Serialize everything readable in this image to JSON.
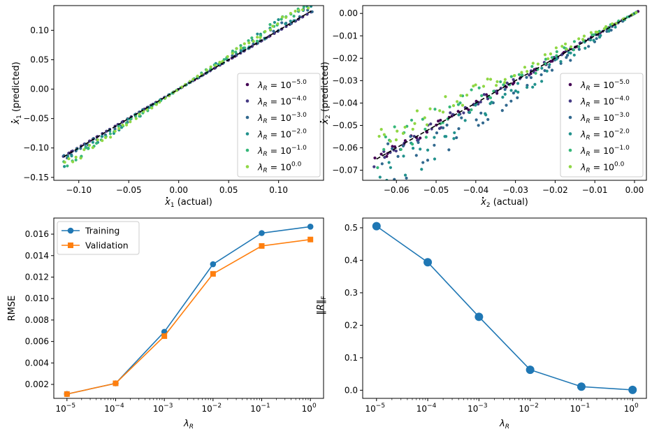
{
  "chart_data": [
    {
      "type": "scatter",
      "xlabel": {
        "var": "x",
        "sub": "1",
        "suffix": " (actual)"
      },
      "ylabel": {
        "var": "x",
        "sub": "1",
        "suffix": " (predicted)"
      },
      "xlim": [
        -0.125,
        0.145
      ],
      "ylim": [
        -0.155,
        0.142
      ],
      "xticks": [
        -0.1,
        -0.05,
        0.0,
        0.05,
        0.1
      ],
      "xtick_labels": [
        "−0.10",
        "−0.05",
        "0.00",
        "0.05",
        "0.10"
      ],
      "yticks": [
        -0.15,
        -0.1,
        -0.05,
        0.0,
        0.05,
        0.1
      ],
      "ytick_labels": [
        "−0.15",
        "−0.10",
        "−0.05",
        "0.00",
        "0.05",
        "0.10"
      ],
      "x_range": [
        -0.115,
        0.133
      ],
      "reference_line": "dashed y = x",
      "legend_position": "lower-right",
      "series": [
        {
          "name": "λR = 10^-5.0",
          "exp": "−5.0",
          "slope": 0.99,
          "spread": 0.0,
          "color": "#440154"
        },
        {
          "name": "λR = 10^-4.0",
          "exp": "−4.0",
          "slope": 0.99,
          "spread": 0.0,
          "color": "#443983"
        },
        {
          "name": "λR = 10^-3.0",
          "exp": "−3.0",
          "slope": 1.03,
          "spread": 0.004,
          "color": "#31688e"
        },
        {
          "name": "λR = 10^-2.0",
          "exp": "−2.0",
          "slope": 1.09,
          "spread": 0.006,
          "color": "#21918c"
        },
        {
          "name": "λR = 10^-1.0",
          "exp": "−1.0",
          "slope": 1.12,
          "spread": 0.005,
          "color": "#35b779"
        },
        {
          "name": "λR = 10^0.0",
          "exp": "0.0",
          "slope": 1.13,
          "spread": 0.004,
          "color": "#8fd744"
        }
      ]
    },
    {
      "type": "scatter",
      "xlabel": {
        "var": "x",
        "sub": "2",
        "suffix": " (actual)"
      },
      "ylabel": {
        "var": "x",
        "sub": "2",
        "suffix": " (predicted)"
      },
      "xlim": [
        -0.0685,
        0.003
      ],
      "ylim": [
        -0.0745,
        0.0035
      ],
      "xticks": [
        -0.06,
        -0.05,
        -0.04,
        -0.03,
        -0.02,
        -0.01,
        0.0
      ],
      "xtick_labels": [
        "−0.06",
        "−0.05",
        "−0.04",
        "−0.03",
        "−0.02",
        "−0.01",
        "0.00"
      ],
      "yticks": [
        -0.07,
        -0.06,
        -0.05,
        -0.04,
        -0.03,
        -0.02,
        -0.01,
        0.0
      ],
      "ytick_labels": [
        "−0.07",
        "−0.06",
        "−0.05",
        "−0.04",
        "−0.03",
        "−0.02",
        "−0.01",
        "0.00"
      ],
      "x_range": [
        -0.065,
        0.0
      ],
      "reference_line": "dashed y = x",
      "legend_position": "lower-right",
      "series": [
        {
          "name": "λR = 10^-5.0",
          "exp": "−5.0",
          "slope": 1.0,
          "spread": 0.001,
          "color": "#440154"
        },
        {
          "name": "λR = 10^-4.0",
          "exp": "−4.0",
          "slope": 1.0,
          "spread": 0.0015,
          "color": "#443983"
        },
        {
          "name": "λR = 10^-3.0",
          "exp": "−3.0",
          "slope": 1.12,
          "spread": 0.006,
          "color": "#31688e"
        },
        {
          "name": "λR = 10^-2.0",
          "exp": "−2.0",
          "slope": 1.15,
          "spread": 0.005,
          "color": "#21918c"
        },
        {
          "name": "λR = 10^-1.0",
          "exp": "−1.0",
          "slope": 0.95,
          "spread": 0.004,
          "color": "#35b779"
        },
        {
          "name": "λR = 10^0.0",
          "exp": "0.0",
          "slope": 0.87,
          "spread": 0.003,
          "color": "#8fd744"
        }
      ]
    },
    {
      "type": "line",
      "x": [
        1e-05,
        0.0001,
        0.001,
        0.01,
        0.1,
        1
      ],
      "xscale": "log",
      "xtick_exponents": [
        "−5",
        "−4",
        "−3",
        "−2",
        "−1",
        "0"
      ],
      "xlabel": "λR",
      "ylabel": "RMSE",
      "ylim": [
        0.0007,
        0.0175
      ],
      "yticks": [
        0.002,
        0.004,
        0.006,
        0.008,
        0.01,
        0.012,
        0.014,
        0.016
      ],
      "ytick_labels": [
        "0.002",
        "0.004",
        "0.006",
        "0.008",
        "0.010",
        "0.012",
        "0.014",
        "0.016"
      ],
      "legend_position": "top-left",
      "series": [
        {
          "name": "Training",
          "values": [
            0.0011,
            0.0021,
            0.0069,
            0.0132,
            0.0161,
            0.0167
          ],
          "color": "#1f77b4",
          "marker": "circle"
        },
        {
          "name": "Validation",
          "values": [
            0.0011,
            0.0021,
            0.0065,
            0.0123,
            0.0149,
            0.0155
          ],
          "color": "#ff7f0e",
          "marker": "square"
        }
      ]
    },
    {
      "type": "line",
      "x": [
        1e-05,
        0.0001,
        0.001,
        0.01,
        0.1,
        1
      ],
      "xscale": "log",
      "xtick_exponents": [
        "−5",
        "−4",
        "−3",
        "−2",
        "−1",
        "0"
      ],
      "xlabel": "λR",
      "ylabel": "‖R‖F",
      "ylim": [
        -0.025,
        0.53
      ],
      "yticks": [
        0.0,
        0.1,
        0.2,
        0.3,
        0.4,
        0.5
      ],
      "ytick_labels": [
        "0.0",
        "0.1",
        "0.2",
        "0.3",
        "0.4",
        "0.5"
      ],
      "series": [
        {
          "values": [
            0.505,
            0.394,
            0.226,
            0.063,
            0.011,
            0.001
          ],
          "color": "#1f77b4",
          "marker": "circle"
        }
      ]
    }
  ]
}
